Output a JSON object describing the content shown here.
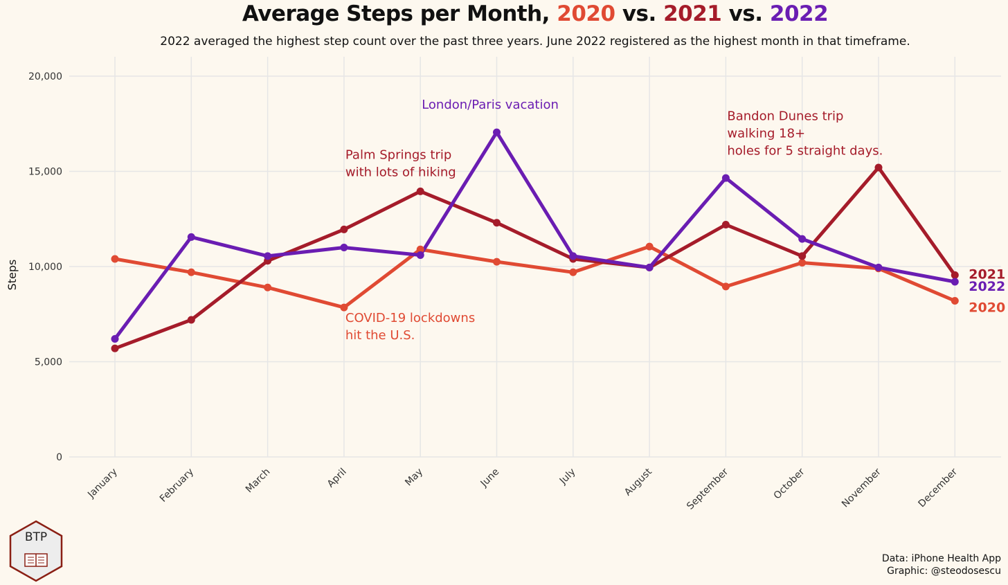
{
  "title": {
    "prefix": "Average Steps per Month, ",
    "y2020": "2020",
    "vs1": " vs. ",
    "y2021": "2021",
    "vs2": " vs. ",
    "y2022": "2022"
  },
  "subtitle": "2022 averaged the highest step count over the past three years. June 2022 registered as the highest month in that timeframe.",
  "logo_text": "BTP",
  "caption": {
    "data": "Data: iPhone Health App",
    "graphic": "Graphic: @steodosescu"
  },
  "colors": {
    "c2020": "#e04a33",
    "c2021": "#a51c2a",
    "c2022": "#6a1db2",
    "grid": "#e6e6e6",
    "background": "#fdf8ef"
  },
  "chart_data": {
    "type": "line",
    "ylabel": "Steps",
    "xlabel": "",
    "ylim": [
      0,
      20000
    ],
    "yticks": [
      0,
      5000,
      10000,
      15000,
      20000
    ],
    "ytick_labels": [
      "0",
      "5,000",
      "10,000",
      "15,000",
      "20,000"
    ],
    "categories": [
      "January",
      "February",
      "March",
      "April",
      "May",
      "June",
      "July",
      "August",
      "September",
      "October",
      "November",
      "December"
    ],
    "grid": true,
    "legend": "direct labels at line ends",
    "series": [
      {
        "name": "2020",
        "color": "#e04a33",
        "values": [
          10400,
          9700,
          8900,
          7850,
          10900,
          10250,
          9700,
          11050,
          8950,
          10200,
          9900,
          8200
        ]
      },
      {
        "name": "2021",
        "color": "#a51c2a",
        "values": [
          5700,
          7200,
          10300,
          11950,
          13950,
          12300,
          10400,
          9950,
          12200,
          10550,
          15200,
          9550
        ]
      },
      {
        "name": "2022",
        "color": "#6a1db2",
        "values": [
          6200,
          11550,
          10550,
          11000,
          10600,
          17050,
          10550,
          9950,
          14650,
          11450,
          9950,
          9200
        ]
      }
    ],
    "annotations": [
      {
        "lines": [
          "London/Paris vacation"
        ],
        "series": "2022",
        "category": "May",
        "y": 18300
      },
      {
        "lines": [
          "Palm Springs trip",
          "with lots of hiking"
        ],
        "series": "2021",
        "category": "April",
        "y": 15650
      },
      {
        "lines": [
          "Bandon Dunes trip",
          "walking 18+",
          "holes for 5 straight days."
        ],
        "series": "2021",
        "category": "September",
        "y": 17700
      },
      {
        "lines": [
          "COVID-19 lockdowns",
          "hit the U.S."
        ],
        "series": "2020",
        "category": "April",
        "y": 7100
      }
    ]
  }
}
